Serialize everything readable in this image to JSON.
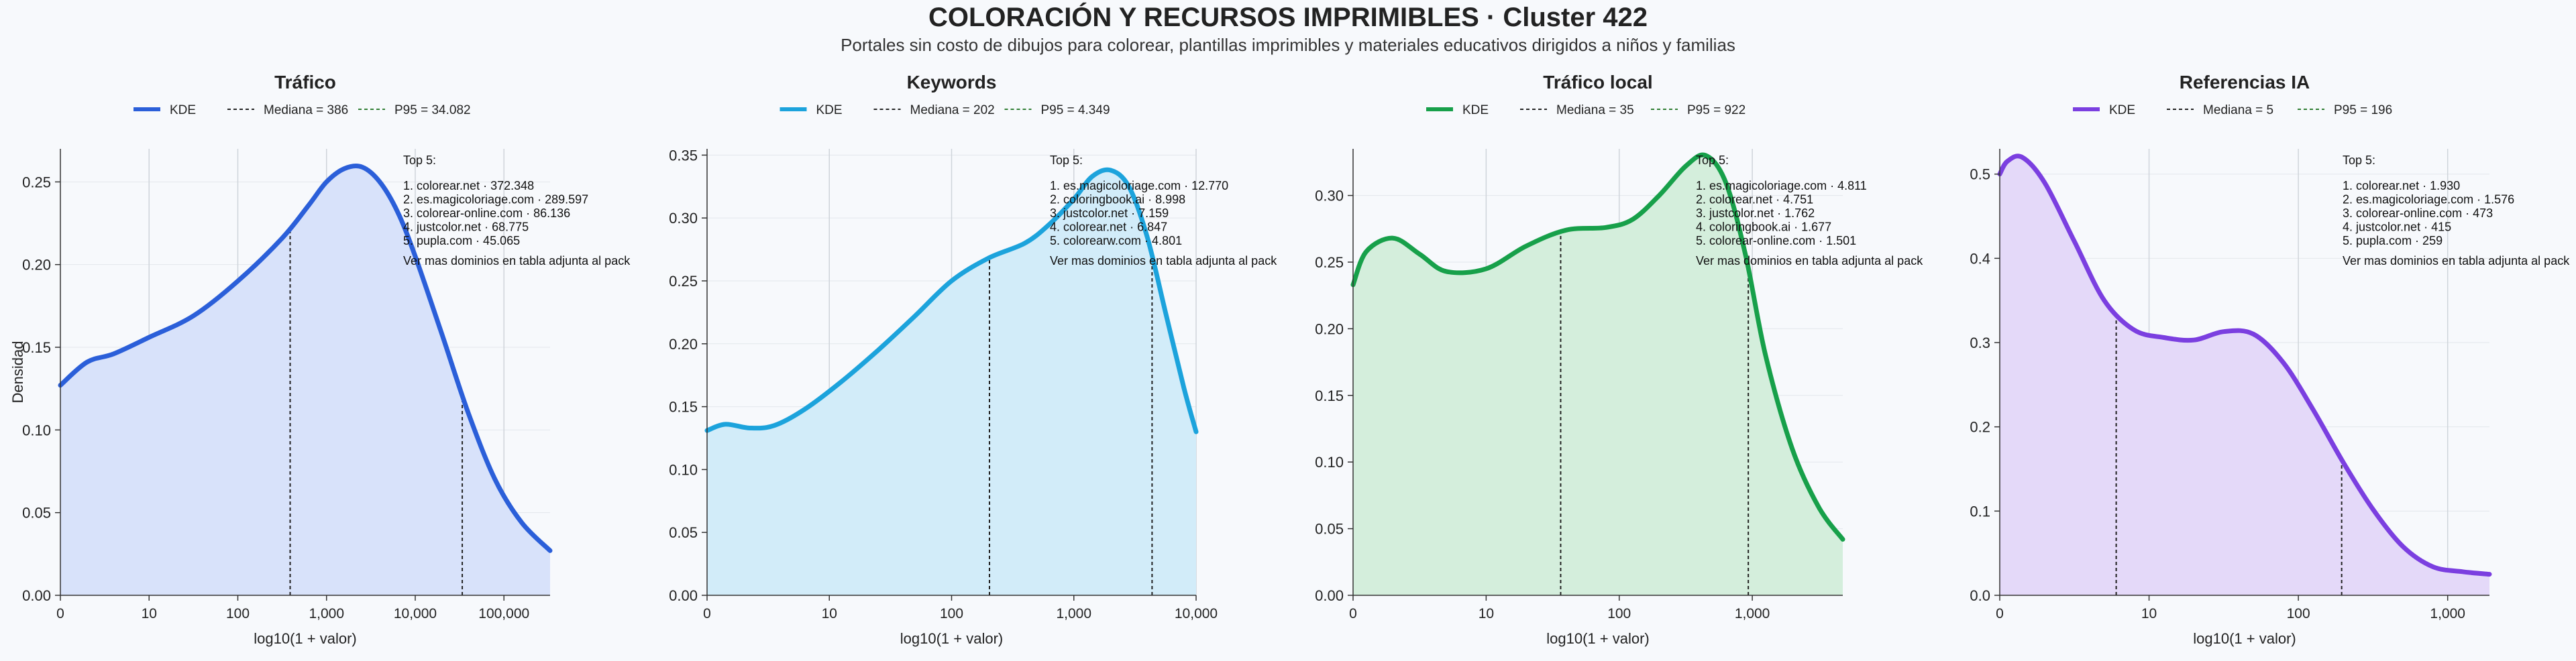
{
  "header": {
    "title": "COLORACIÓN Y RECURSOS IMPRIMIBLES · Cluster 422",
    "subtitle": "Portales sin costo de dibujos para colorear, plantillas imprimibles y materiales educativos dirigidos a niños y familias"
  },
  "colors": {
    "median": "#222222",
    "p95": "#2e7d32",
    "grid": "#cfd4da",
    "axis": "#333333"
  },
  "chart_data": [
    {
      "type": "area",
      "title": "Tráfico",
      "xlabel": "log10(1 + valor)",
      "ylabel": "Densidad",
      "color": "#2b5fd9",
      "fill": "#d8e2fa",
      "xlim": [
        0,
        5.52
      ],
      "ylim": [
        0,
        0.27
      ],
      "xticks": [
        0,
        1,
        2,
        3,
        4,
        5
      ],
      "xtick_labels": [
        "0",
        "10",
        "100",
        "1,000",
        "10,000",
        "100,000"
      ],
      "yticks": [
        0,
        0.05,
        0.1,
        0.15,
        0.2,
        0.25
      ],
      "ytick_labels": [
        "0.00",
        "0.05",
        "0.10",
        "0.15",
        "0.20",
        "0.25"
      ],
      "legend": {
        "kde": "KDE",
        "median": "Mediana = 386",
        "p95": "P95 = 34.082"
      },
      "median_x": 2.59,
      "p95_x": 4.53,
      "x": [
        0,
        0.3,
        0.6,
        1.0,
        1.5,
        2.0,
        2.5,
        2.8,
        3.0,
        3.2,
        3.4,
        3.6,
        3.8,
        4.0,
        4.3,
        4.6,
        4.9,
        5.2,
        5.52
      ],
      "y": [
        0.127,
        0.141,
        0.146,
        0.156,
        0.169,
        0.19,
        0.216,
        0.236,
        0.25,
        0.258,
        0.259,
        0.25,
        0.232,
        0.205,
        0.158,
        0.11,
        0.07,
        0.044,
        0.027
      ],
      "top5_title": "Top 5:",
      "top5": [
        "1. colorear.net · 372.348",
        "2. es.magicoloriage.com · 289.597",
        "3. colorear-online.com · 86.136",
        "4. justcolor.net · 68.775",
        "5. pupla.com · 45.065"
      ],
      "note": "Ver mas dominios en tabla adjunta al pack"
    },
    {
      "type": "area",
      "title": "Keywords",
      "xlabel": "log10(1 + valor)",
      "ylabel": "",
      "color": "#1ca3dc",
      "fill": "#d2ecf9",
      "xlim": [
        0,
        4.0
      ],
      "ylim": [
        0,
        0.355
      ],
      "xticks": [
        0,
        1,
        2,
        3,
        4
      ],
      "xtick_labels": [
        "0",
        "10",
        "100",
        "1,000",
        "10,000"
      ],
      "yticks": [
        0,
        0.05,
        0.1,
        0.15,
        0.2,
        0.25,
        0.3,
        0.35
      ],
      "ytick_labels": [
        "0.00",
        "0.05",
        "0.10",
        "0.15",
        "0.20",
        "0.25",
        "0.30",
        "0.35"
      ],
      "legend": {
        "kde": "KDE",
        "median": "Mediana = 202",
        "p95": "P95 = 4.349"
      },
      "median_x": 2.31,
      "p95_x": 3.64,
      "x": [
        0,
        0.15,
        0.35,
        0.55,
        0.8,
        1.1,
        1.4,
        1.7,
        2.0,
        2.3,
        2.6,
        2.8,
        3.0,
        3.15,
        3.3,
        3.45,
        3.6,
        3.75,
        3.9,
        4.0
      ],
      "y": [
        0.131,
        0.136,
        0.133,
        0.135,
        0.148,
        0.17,
        0.195,
        0.222,
        0.25,
        0.268,
        0.28,
        0.295,
        0.315,
        0.333,
        0.338,
        0.325,
        0.285,
        0.225,
        0.165,
        0.13
      ],
      "top5_title": "Top 5:",
      "top5": [
        "1. es.magicoloriage.com · 12.770",
        "2. coloringbook.ai · 8.998",
        "3. justcolor.net · 7.159",
        "4. colorear.net · 6.847",
        "5. colorearw.com · 4.801"
      ],
      "note": "Ver mas dominios en tabla adjunta al pack"
    },
    {
      "type": "area",
      "title": "Tráfico local",
      "xlabel": "log10(1 + valor)",
      "ylabel": "",
      "color": "#17a04a",
      "fill": "#d4eedc",
      "xlim": [
        0,
        3.68
      ],
      "ylim": [
        0,
        0.335
      ],
      "xticks": [
        0,
        1,
        2,
        3
      ],
      "xtick_labels": [
        "0",
        "10",
        "100",
        "1,000"
      ],
      "yticks": [
        0,
        0.05,
        0.1,
        0.15,
        0.2,
        0.25,
        0.3
      ],
      "ytick_labels": [
        "0.00",
        "0.05",
        "0.10",
        "0.15",
        "0.20",
        "0.25",
        "0.30"
      ],
      "legend": {
        "kde": "KDE",
        "median": "Mediana = 35",
        "p95": "P95 = 922"
      },
      "median_x": 1.56,
      "p95_x": 2.97,
      "x": [
        0,
        0.1,
        0.3,
        0.5,
        0.7,
        1.0,
        1.3,
        1.6,
        1.9,
        2.1,
        2.3,
        2.5,
        2.65,
        2.8,
        2.95,
        3.1,
        3.3,
        3.5,
        3.68
      ],
      "y": [
        0.233,
        0.258,
        0.268,
        0.256,
        0.243,
        0.245,
        0.262,
        0.274,
        0.276,
        0.282,
        0.3,
        0.322,
        0.33,
        0.31,
        0.255,
        0.18,
        0.11,
        0.066,
        0.042
      ],
      "top5_title": "Top 5:",
      "top5": [
        "1. es.magicoloriage.com · 4.811",
        "2. colorear.net · 4.751",
        "3. justcolor.net · 1.762",
        "4. coloringbook.ai · 1.677",
        "5. colorear-online.com · 1.501"
      ],
      "note": "Ver mas dominios en tabla adjunta al pack"
    },
    {
      "type": "area",
      "title": "Referencias IA",
      "xlabel": "log10(1 + valor)",
      "ylabel": "",
      "color": "#7b3fe0",
      "fill": "#e4d9f9",
      "xlim": [
        0,
        3.28
      ],
      "ylim": [
        0,
        0.53
      ],
      "xticks": [
        0,
        1,
        2,
        3
      ],
      "xtick_labels": [
        "0",
        "10",
        "100",
        "1,000"
      ],
      "yticks": [
        0,
        0.1,
        0.2,
        0.3,
        0.4,
        0.5
      ],
      "ytick_labels": [
        "0.0",
        "0.1",
        "0.2",
        "0.3",
        "0.4",
        "0.5"
      ],
      "legend": {
        "kde": "KDE",
        "median": "Mediana = 5",
        "p95": "P95 = 196"
      },
      "median_x": 0.78,
      "p95_x": 2.29,
      "x": [
        0,
        0.05,
        0.15,
        0.3,
        0.5,
        0.7,
        0.9,
        1.1,
        1.3,
        1.5,
        1.7,
        1.9,
        2.1,
        2.3,
        2.5,
        2.7,
        2.9,
        3.1,
        3.28
      ],
      "y": [
        0.5,
        0.515,
        0.52,
        0.49,
        0.42,
        0.35,
        0.315,
        0.306,
        0.303,
        0.313,
        0.31,
        0.276,
        0.22,
        0.158,
        0.102,
        0.058,
        0.034,
        0.028,
        0.025
      ],
      "top5_title": "Top 5:",
      "top5": [
        "1. colorear.net · 1.930",
        "2. es.magicoloriage.com · 1.576",
        "3. colorear-online.com · 473",
        "4. justcolor.net · 415",
        "5. pupla.com · 259"
      ],
      "note": "Ver mas dominios en tabla adjunta al pack"
    }
  ]
}
